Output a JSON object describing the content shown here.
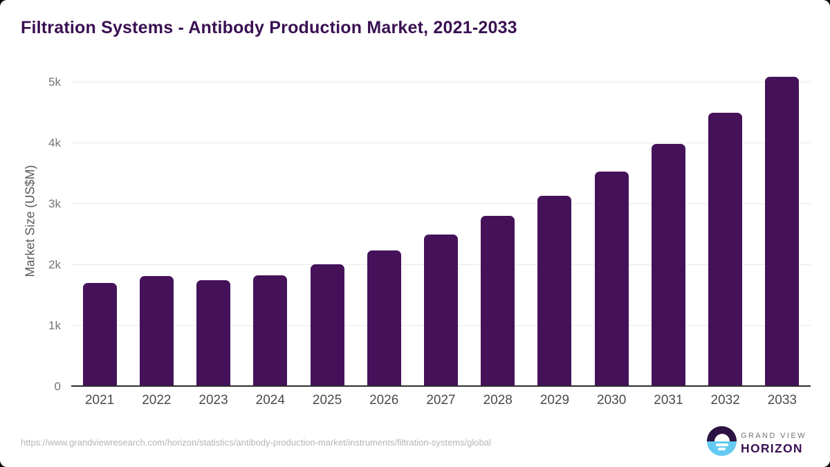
{
  "header": {
    "title_color": "#3A1052"
  },
  "chart_data": {
    "type": "bar",
    "title": "Filtration Systems - Antibody Production Market, 2021-2033",
    "xlabel": "",
    "ylabel": "Market Size (US$M)",
    "categories": [
      "2021",
      "2022",
      "2023",
      "2024",
      "2025",
      "2026",
      "2027",
      "2028",
      "2029",
      "2030",
      "2031",
      "2032",
      "2033"
    ],
    "values": [
      1710,
      1820,
      1750,
      1835,
      2010,
      2240,
      2500,
      2805,
      3140,
      3530,
      3985,
      4505,
      5090
    ],
    "ylim": [
      0,
      5000
    ],
    "yticks": [
      {
        "value": 0,
        "label": "0"
      },
      {
        "value": 1000,
        "label": "1k"
      },
      {
        "value": 2000,
        "label": "2k"
      },
      {
        "value": 3000,
        "label": "3k"
      },
      {
        "value": 4000,
        "label": "4k"
      },
      {
        "value": 5000,
        "label": "5k"
      }
    ],
    "grid": true,
    "legend": "none",
    "bar_color": "#45125A",
    "grid_color": "#E9E9E9",
    "axis_color": "#2B2B2B"
  },
  "footer": {
    "source_url": "https://www.grandviewresearch.com/horizon/statistics/antibody-production-market/instruments/filtration-systems/global",
    "logo": {
      "icon": "sunrise-horizon-icon",
      "top_text": "GRAND VIEW",
      "bottom_text": "HORIZON",
      "purple": "#3A1053",
      "blue": "#64CAF1"
    }
  }
}
